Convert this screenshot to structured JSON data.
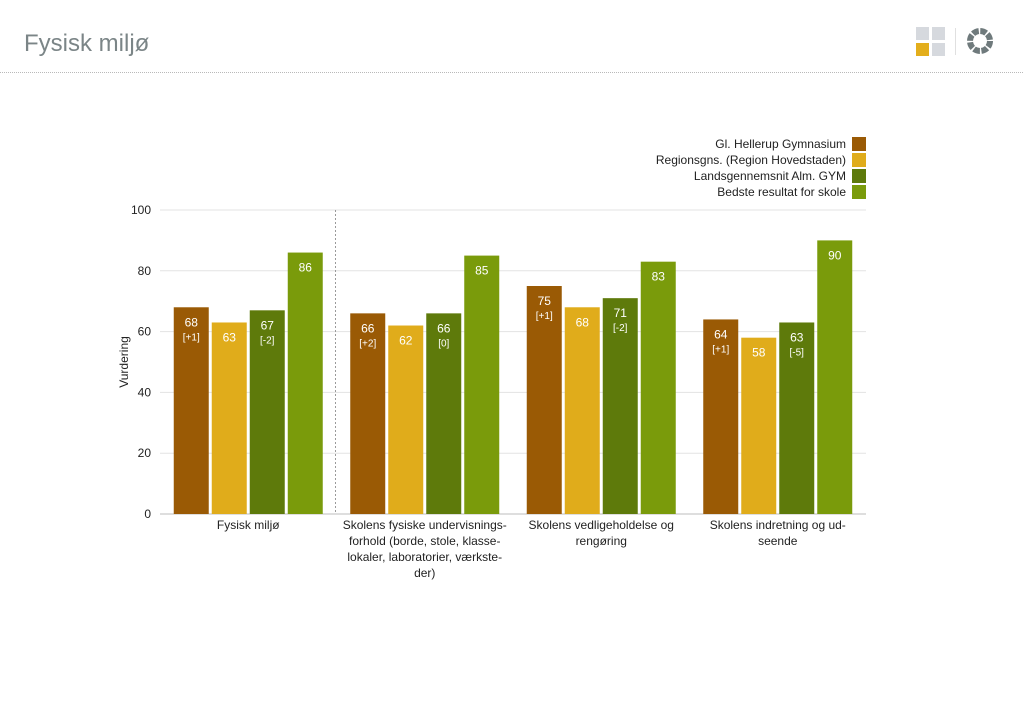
{
  "page": {
    "title": "Fysisk miljø"
  },
  "colors": {
    "title": "#7b8587",
    "logo_highlight": "#e3ae1c",
    "logo_grey": "#d6d9de",
    "ring": "#6f7a7c"
  },
  "icons": {
    "grid_logo": "grid-logo-icon",
    "ring_logo": "ring-logo-icon"
  },
  "chart_data": {
    "type": "bar",
    "ylabel": "Vurdering",
    "ylim": [
      0,
      100
    ],
    "yticks": [
      0,
      20,
      40,
      60,
      80,
      100
    ],
    "grid": true,
    "legend_position": "top-right",
    "categories": [
      [
        "Fysisk miljø"
      ],
      [
        "Skolens fysiske undervisnings-",
        "forhold (borde, stole, klasse-",
        "lokaler, laboratorier, værkste-",
        "der)"
      ],
      [
        "Skolens vedligeholdelse og",
        "rengøring"
      ],
      [
        "Skolens indretning og ud-",
        "seende"
      ]
    ],
    "series": [
      {
        "name": "Gl. Hellerup Gymnasium",
        "color": "#9a5a05",
        "values": [
          68,
          66,
          75,
          64
        ],
        "changes": [
          "[+1]",
          "[+2]",
          "[+1]",
          "[+1]"
        ]
      },
      {
        "name": "Regionsgns. (Region Hovedstaden)",
        "color": "#e0ac1b",
        "values": [
          63,
          62,
          68,
          58
        ],
        "changes": [
          null,
          null,
          null,
          null
        ]
      },
      {
        "name": "Landsgennemsnit Alm. GYM",
        "color": "#5e7a0b",
        "values": [
          67,
          66,
          71,
          63
        ],
        "changes": [
          "[-2]",
          "[0]",
          "[-2]",
          "[-5]"
        ]
      },
      {
        "name": "Bedste resultat for skole",
        "color": "#7a9b0b",
        "values": [
          86,
          85,
          83,
          90
        ],
        "changes": [
          null,
          null,
          null,
          null
        ]
      }
    ]
  }
}
